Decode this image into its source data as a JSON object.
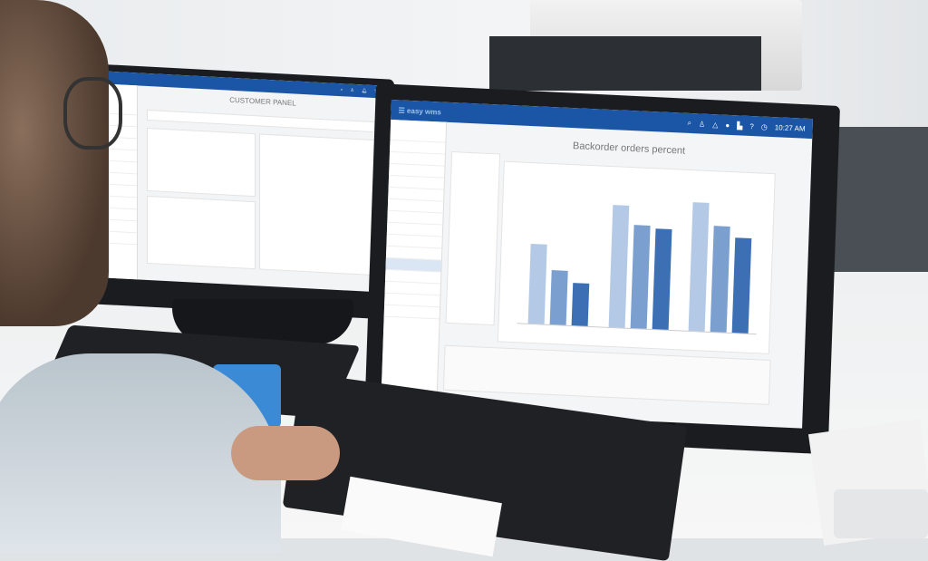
{
  "right_monitor": {
    "logo": "easy wms",
    "clock": "10:27 AM",
    "page_title": "Backorder orders percent",
    "topbar_icons": [
      "search-icon",
      "user-icon",
      "bell-icon",
      "company-logo-icon",
      "chart-icon",
      "help-icon",
      "clock-icon"
    ],
    "chart_bars": [
      {
        "group": 1,
        "values": [
          0.62,
          0.42,
          0.33
        ]
      },
      {
        "group": 2,
        "values": [
          0.95,
          0.8,
          0.78
        ]
      },
      {
        "group": 3,
        "values": [
          1.0,
          0.82,
          0.74
        ]
      }
    ],
    "series_colors": [
      "#b3c9e6",
      "#7ba0d0",
      "#3c6fb3"
    ]
  },
  "left_monitor": {
    "page_title": "CUSTOMER PANEL",
    "accent": "#1b56a6"
  }
}
